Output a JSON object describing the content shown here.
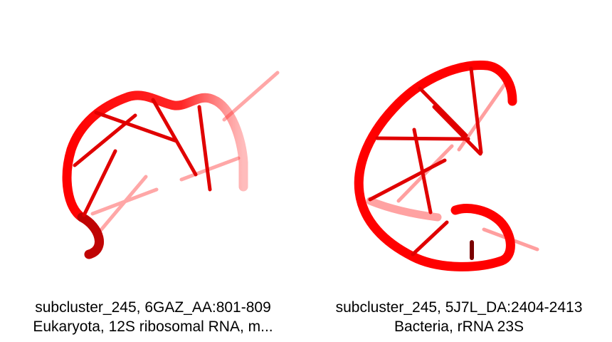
{
  "structures": [
    {
      "subcluster": "subcluster_245, 6GAZ_AA:801-809",
      "description": "Eukaryota, 12S ribosomal RNA, m...",
      "color": "#ff0000"
    },
    {
      "subcluster": "subcluster_245, 5J7L_DA:2404-2413",
      "description": "Bacteria, rRNA 23S",
      "color": "#ff0000"
    }
  ]
}
